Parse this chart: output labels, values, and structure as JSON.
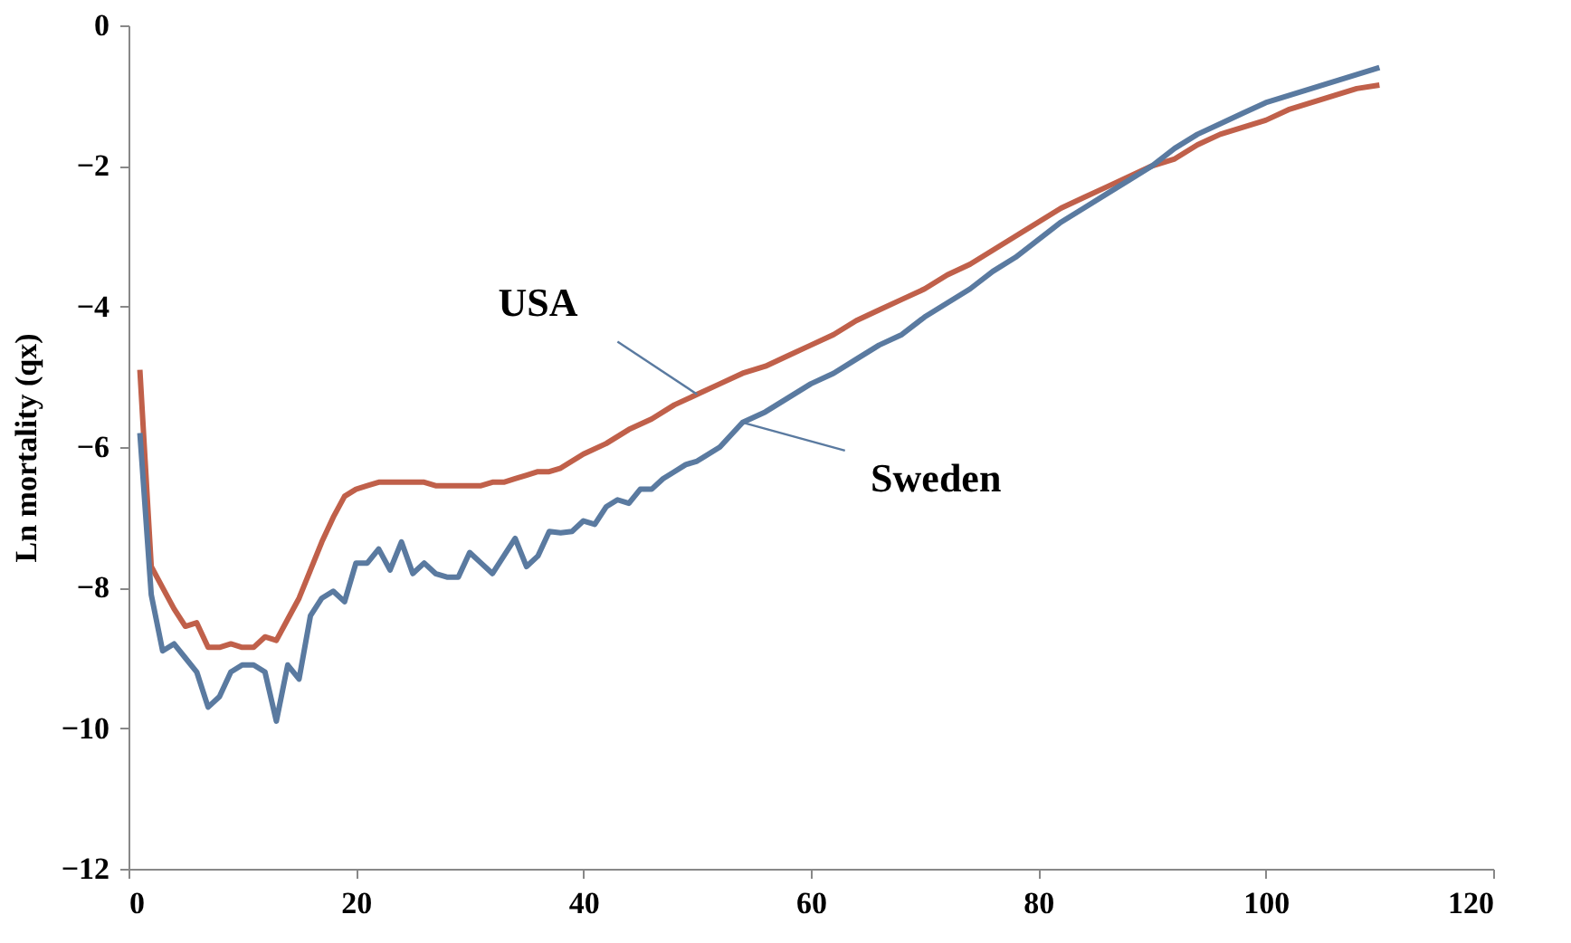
{
  "chart_data": {
    "type": "line",
    "ylabel": "Ln mortality (qx)",
    "xlim": [
      0,
      120
    ],
    "xticks": [
      0,
      20,
      40,
      60,
      80,
      100,
      120
    ],
    "ylim": [
      -12,
      0
    ],
    "yticks": [
      -12,
      -10,
      -8,
      -6,
      -4,
      -2,
      0
    ],
    "grid": false,
    "legend": false,
    "marker": "none",
    "line_style": "solid",
    "series": [
      {
        "name": "USA",
        "color": "#c0604a",
        "x": [
          1,
          2,
          3,
          4,
          5,
          6,
          7,
          8,
          9,
          10,
          11,
          12,
          13,
          14,
          15,
          16,
          17,
          18,
          19,
          20,
          21,
          22,
          23,
          24,
          25,
          26,
          27,
          28,
          29,
          30,
          31,
          32,
          33,
          34,
          35,
          36,
          37,
          38,
          39,
          40,
          42,
          44,
          46,
          48,
          50,
          52,
          54,
          56,
          58,
          60,
          62,
          64,
          66,
          68,
          70,
          72,
          74,
          76,
          78,
          80,
          82,
          84,
          86,
          88,
          90,
          92,
          94,
          96,
          98,
          100,
          102,
          104,
          106,
          108,
          110
        ],
        "values": [
          -4.9,
          -7.7,
          -8.0,
          -8.3,
          -8.55,
          -8.5,
          -8.85,
          -8.85,
          -8.8,
          -8.85,
          -8.85,
          -8.7,
          -8.75,
          -8.45,
          -8.15,
          -7.75,
          -7.35,
          -7.0,
          -6.7,
          -6.6,
          -6.55,
          -6.5,
          -6.5,
          -6.5,
          -6.5,
          -6.5,
          -6.55,
          -6.55,
          -6.55,
          -6.55,
          -6.55,
          -6.5,
          -6.5,
          -6.45,
          -6.4,
          -6.35,
          -6.35,
          -6.3,
          -6.2,
          -6.1,
          -5.95,
          -5.75,
          -5.6,
          -5.4,
          -5.25,
          -5.1,
          -4.95,
          -4.85,
          -4.7,
          -4.55,
          -4.4,
          -4.2,
          -4.05,
          -3.9,
          -3.75,
          -3.55,
          -3.4,
          -3.2,
          -3.0,
          -2.8,
          -2.6,
          -2.45,
          -2.3,
          -2.15,
          -2.0,
          -1.9,
          -1.7,
          -1.55,
          -1.45,
          -1.35,
          -1.2,
          -1.1,
          -1.0,
          -0.9,
          -0.85
        ]
      },
      {
        "name": "Sweden",
        "color": "#5a7aa0",
        "x": [
          1,
          2,
          3,
          4,
          5,
          6,
          7,
          8,
          9,
          10,
          11,
          12,
          13,
          14,
          15,
          16,
          17,
          18,
          19,
          20,
          21,
          22,
          23,
          24,
          25,
          26,
          27,
          28,
          29,
          30,
          31,
          32,
          33,
          34,
          35,
          36,
          37,
          38,
          39,
          40,
          41,
          42,
          43,
          44,
          45,
          46,
          47,
          48,
          49,
          50,
          52,
          54,
          56,
          58,
          60,
          62,
          64,
          66,
          68,
          70,
          72,
          74,
          76,
          78,
          80,
          82,
          84,
          86,
          88,
          90,
          92,
          94,
          96,
          98,
          100,
          102,
          104,
          106,
          108,
          110
        ],
        "values": [
          -5.8,
          -8.1,
          -8.9,
          -8.8,
          -9.0,
          -9.2,
          -9.7,
          -9.55,
          -9.2,
          -9.1,
          -9.1,
          -9.2,
          -9.9,
          -9.1,
          -9.3,
          -8.4,
          -8.15,
          -8.05,
          -8.2,
          -7.65,
          -7.65,
          -7.45,
          -7.75,
          -7.35,
          -7.8,
          -7.65,
          -7.8,
          -7.85,
          -7.85,
          -7.5,
          -7.65,
          -7.8,
          -7.55,
          -7.3,
          -7.7,
          -7.55,
          -7.2,
          -7.22,
          -7.2,
          -7.05,
          -7.1,
          -6.85,
          -6.75,
          -6.8,
          -6.6,
          -6.6,
          -6.45,
          -6.35,
          -6.25,
          -6.2,
          -6.0,
          -5.65,
          -5.5,
          -5.3,
          -5.1,
          -4.95,
          -4.75,
          -4.55,
          -4.4,
          -4.15,
          -3.95,
          -3.75,
          -3.5,
          -3.3,
          -3.05,
          -2.8,
          -2.6,
          -2.4,
          -2.2,
          -2.0,
          -1.75,
          -1.55,
          -1.4,
          -1.25,
          -1.1,
          -1.0,
          -0.9,
          -0.8,
          -0.7,
          -0.6
        ]
      }
    ]
  }
}
